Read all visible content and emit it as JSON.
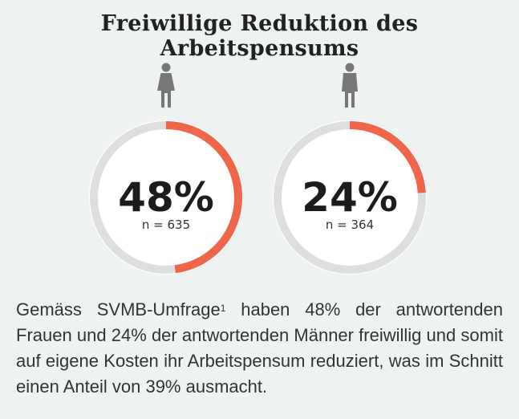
{
  "title": "Freiwillige Reduktion des Arbeitspensums",
  "colors": {
    "background": "#eef3f2",
    "ring_track": "#dedede",
    "accent": "#f0664a",
    "icon": "#777777"
  },
  "chart_data": {
    "type": "donut",
    "title": "Freiwillige Reduktion des Arbeitspensums",
    "series": [
      {
        "name": "Frauen",
        "icon": "female-person-icon",
        "value": 48,
        "label": "48%",
        "n_label": "n = 635"
      },
      {
        "name": "Männer",
        "icon": "male-person-icon",
        "value": 24,
        "label": "24%",
        "n_label": "n = 364"
      }
    ],
    "max": 100
  },
  "description": {
    "text_pre": "Gemäss SVMB-Umfrage",
    "footnote": "1",
    "text_post": " haben 48% der antwortenden Frauen und 24% der antwortenden Männer freiwillig und somit auf eigene Kosten ihr Arbeitspensum reduziert, was im Schnitt einen Anteil von 39% ausmacht."
  }
}
